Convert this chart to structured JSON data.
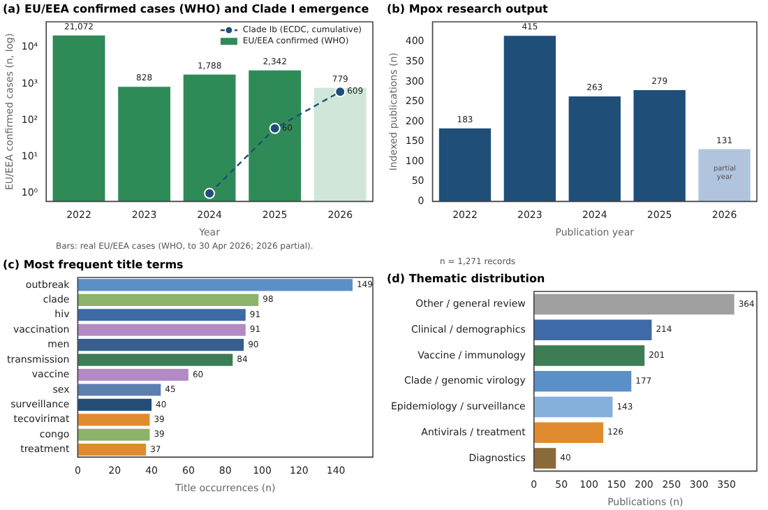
{
  "chart_data": [
    {
      "type": "bar",
      "title": "(a) EU/EEA confirmed cases (WHO) and Clade I emergence",
      "xlabel": "Year",
      "ylabel": "EU/EEA confirmed cases (n, log)",
      "categories": [
        "2022",
        "2023",
        "2024",
        "2025",
        "2026"
      ],
      "series": [
        {
          "type": "bar",
          "name": "EU/EEA confirmed (WHO)",
          "colors": [
            "#2e8b57",
            "#2e8b57",
            "#2e8b57",
            "#2e8b57",
            "#cfe6d8"
          ],
          "values": [
            21072,
            828,
            1788,
            2342,
            779
          ],
          "value_labels": [
            "21,072",
            "828",
            "1,788",
            "2,342",
            "779"
          ]
        },
        {
          "type": "line",
          "name": "Clade Ib (ECDC, cumulative)",
          "color": "#1f4e79",
          "values": [
            null,
            null,
            1,
            60,
            609
          ],
          "value_labels": [
            null,
            null,
            null,
            "60",
            "609"
          ]
        }
      ],
      "log": true,
      "ylim": [
        0.6,
        50000
      ],
      "yticks": [
        {
          "value": 1,
          "label": "10⁰"
        },
        {
          "value": 10,
          "label": "10¹"
        },
        {
          "value": 100,
          "label": "10²"
        },
        {
          "value": 1000,
          "label": "10³"
        },
        {
          "value": 10000,
          "label": "10⁴"
        }
      ],
      "legend": "top right",
      "marker": "circle",
      "line_style": "dashed",
      "annotations": [
        "Bars: real EU/EEA cases (WHO, to 30 Apr 2026; 2026 partial)."
      ]
    },
    {
      "type": "bar",
      "title": "(b) Mpox research output",
      "xlabel": "Publication year",
      "ylabel": "Indexed publications (n)",
      "categories": [
        "2022",
        "2023",
        "2024",
        "2025",
        "2026"
      ],
      "values": [
        183,
        415,
        263,
        279,
        131
      ],
      "colors": [
        "#1f4e79",
        "#1f4e79",
        "#1f4e79",
        "#1f4e79",
        "#b0c4de"
      ],
      "data_labels": true,
      "ylim": [
        0,
        450
      ],
      "yticks": [
        0,
        50,
        100,
        150,
        200,
        250,
        300,
        350,
        400
      ],
      "annotations": [
        "partial year"
      ]
    },
    {
      "type": "bar",
      "orientation": "horizontal",
      "title": "(c) Most frequent title terms",
      "xlabel": "Title occurrences (n)",
      "categories": [
        "outbreak",
        "clade",
        "hiv",
        "vaccination",
        "men",
        "transmission",
        "vaccine",
        "sex",
        "surveillance",
        "tecovirimat",
        "congo",
        "treatment"
      ],
      "values": [
        149,
        98,
        91,
        91,
        90,
        84,
        60,
        45,
        40,
        39,
        39,
        37
      ],
      "colors": [
        "#5b8fc7",
        "#8db26a",
        "#3e6aa8",
        "#b48ac4",
        "#365f8f",
        "#3d7d54",
        "#b48ac4",
        "#5c7fb0",
        "#244e78",
        "#e08c2e",
        "#8db26a",
        "#e08c2e"
      ],
      "data_labels": true,
      "xlim": [
        0,
        160
      ],
      "xticks": [
        0,
        20,
        40,
        60,
        80,
        100,
        120,
        140
      ]
    },
    {
      "type": "bar",
      "orientation": "horizontal",
      "title": "(d) Thematic distribution",
      "xlabel": "Publications (n)",
      "categories": [
        "Other / general review",
        "Clinical / demographics",
        "Vaccine / immunology",
        "Clade / genomic virology",
        "Epidemiology / surveillance",
        "Antivirals / treatment",
        "Diagnostics"
      ],
      "values": [
        364,
        214,
        201,
        177,
        143,
        126,
        40
      ],
      "colors": [
        "#a0a0a0",
        "#3e6aa8",
        "#3d7d54",
        "#5b8fc7",
        "#86b0dc",
        "#e08c2e",
        "#8b6a3a"
      ],
      "data_labels": true,
      "xlim": [
        0,
        405
      ],
      "xticks": [
        0,
        50,
        100,
        150,
        200,
        250,
        300,
        350
      ],
      "annotations": [
        "n = 1,271 records"
      ]
    }
  ]
}
